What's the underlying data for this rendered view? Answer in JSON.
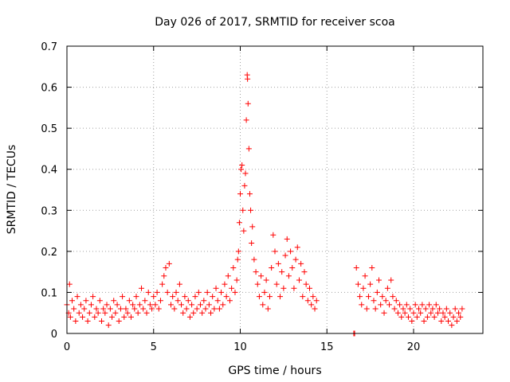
{
  "chart_data": {
    "type": "scatter",
    "title": "Day 026 of 2017, SRMTID for receiver scoa",
    "xlabel": "GPS time / hours",
    "ylabel": "SRMTID / TECUs",
    "xlim": [
      0,
      24
    ],
    "ylim": [
      0,
      0.7
    ],
    "xticks": [
      "0",
      "5",
      "10",
      "15",
      "20"
    ],
    "xtick_values": [
      0,
      5,
      10,
      15,
      20
    ],
    "yticks": [
      "0",
      "0.1",
      "0.2",
      "0.3",
      "0.4",
      "0.5",
      "0.6",
      "0.7"
    ],
    "ytick_values": [
      0,
      0.1,
      0.2,
      0.3,
      0.4,
      0.5,
      0.6,
      0.7
    ],
    "grid": true,
    "marker": "+",
    "color": "#ff0000",
    "series": [
      {
        "name": "SRMTID",
        "points": [
          [
            0.0,
            0.07
          ],
          [
            0.1,
            0.05
          ],
          [
            0.15,
            0.12
          ],
          [
            0.2,
            0.04
          ],
          [
            0.3,
            0.08
          ],
          [
            0.4,
            0.06
          ],
          [
            0.5,
            0.03
          ],
          [
            0.6,
            0.09
          ],
          [
            0.7,
            0.05
          ],
          [
            0.8,
            0.07
          ],
          [
            0.9,
            0.04
          ],
          [
            1.0,
            0.06
          ],
          [
            1.1,
            0.08
          ],
          [
            1.2,
            0.03
          ],
          [
            1.3,
            0.05
          ],
          [
            1.4,
            0.07
          ],
          [
            1.5,
            0.09
          ],
          [
            1.6,
            0.04
          ],
          [
            1.7,
            0.06
          ],
          [
            1.8,
            0.05
          ],
          [
            1.9,
            0.08
          ],
          [
            2.0,
            0.03
          ],
          [
            2.1,
            0.06
          ],
          [
            2.2,
            0.05
          ],
          [
            2.3,
            0.07
          ],
          [
            2.4,
            0.02
          ],
          [
            2.5,
            0.06
          ],
          [
            2.6,
            0.04
          ],
          [
            2.7,
            0.08
          ],
          [
            2.8,
            0.05
          ],
          [
            2.9,
            0.07
          ],
          [
            3.0,
            0.03
          ],
          [
            3.1,
            0.06
          ],
          [
            3.2,
            0.09
          ],
          [
            3.3,
            0.04
          ],
          [
            3.4,
            0.06
          ],
          [
            3.5,
            0.05
          ],
          [
            3.6,
            0.08
          ],
          [
            3.7,
            0.04
          ],
          [
            3.8,
            0.07
          ],
          [
            3.9,
            0.06
          ],
          [
            4.0,
            0.09
          ],
          [
            4.1,
            0.05
          ],
          [
            4.2,
            0.07
          ],
          [
            4.3,
            0.11
          ],
          [
            4.4,
            0.06
          ],
          [
            4.5,
            0.08
          ],
          [
            4.6,
            0.05
          ],
          [
            4.7,
            0.1
          ],
          [
            4.8,
            0.07
          ],
          [
            4.9,
            0.06
          ],
          [
            5.0,
            0.09
          ],
          [
            5.1,
            0.07
          ],
          [
            5.2,
            0.1
          ],
          [
            5.3,
            0.06
          ],
          [
            5.4,
            0.08
          ],
          [
            5.5,
            0.12
          ],
          [
            5.6,
            0.14
          ],
          [
            5.7,
            0.16
          ],
          [
            5.8,
            0.1
          ],
          [
            5.9,
            0.17
          ],
          [
            6.0,
            0.07
          ],
          [
            6.1,
            0.09
          ],
          [
            6.2,
            0.06
          ],
          [
            6.3,
            0.1
          ],
          [
            6.4,
            0.08
          ],
          [
            6.5,
            0.12
          ],
          [
            6.6,
            0.07
          ],
          [
            6.7,
            0.05
          ],
          [
            6.8,
            0.09
          ],
          [
            6.9,
            0.06
          ],
          [
            7.0,
            0.08
          ],
          [
            7.1,
            0.04
          ],
          [
            7.2,
            0.07
          ],
          [
            7.3,
            0.05
          ],
          [
            7.4,
            0.09
          ],
          [
            7.5,
            0.06
          ],
          [
            7.6,
            0.1
          ],
          [
            7.7,
            0.07
          ],
          [
            7.8,
            0.05
          ],
          [
            7.9,
            0.08
          ],
          [
            8.0,
            0.06
          ],
          [
            8.1,
            0.1
          ],
          [
            8.2,
            0.07
          ],
          [
            8.3,
            0.05
          ],
          [
            8.4,
            0.09
          ],
          [
            8.5,
            0.06
          ],
          [
            8.6,
            0.11
          ],
          [
            8.7,
            0.08
          ],
          [
            8.8,
            0.06
          ],
          [
            8.9,
            0.1
          ],
          [
            9.0,
            0.07
          ],
          [
            9.1,
            0.12
          ],
          [
            9.2,
            0.09
          ],
          [
            9.3,
            0.14
          ],
          [
            9.4,
            0.08
          ],
          [
            9.5,
            0.11
          ],
          [
            9.6,
            0.16
          ],
          [
            9.7,
            0.1
          ],
          [
            9.8,
            0.13
          ],
          [
            9.85,
            0.18
          ],
          [
            9.9,
            0.2
          ],
          [
            9.95,
            0.27
          ],
          [
            10.0,
            0.34
          ],
          [
            10.05,
            0.4
          ],
          [
            10.1,
            0.41
          ],
          [
            10.15,
            0.3
          ],
          [
            10.2,
            0.25
          ],
          [
            10.25,
            0.36
          ],
          [
            10.3,
            0.39
          ],
          [
            10.35,
            0.52
          ],
          [
            10.4,
            0.63
          ],
          [
            10.42,
            0.62
          ],
          [
            10.45,
            0.56
          ],
          [
            10.5,
            0.45
          ],
          [
            10.55,
            0.34
          ],
          [
            10.6,
            0.3
          ],
          [
            10.65,
            0.22
          ],
          [
            10.7,
            0.26
          ],
          [
            10.8,
            0.18
          ],
          [
            10.9,
            0.15
          ],
          [
            11.0,
            0.12
          ],
          [
            11.1,
            0.09
          ],
          [
            11.2,
            0.14
          ],
          [
            11.3,
            0.07
          ],
          [
            11.4,
            0.1
          ],
          [
            11.5,
            0.13
          ],
          [
            11.6,
            0.06
          ],
          [
            11.7,
            0.09
          ],
          [
            11.8,
            0.16
          ],
          [
            11.9,
            0.24
          ],
          [
            12.0,
            0.2
          ],
          [
            12.1,
            0.12
          ],
          [
            12.2,
            0.17
          ],
          [
            12.3,
            0.09
          ],
          [
            12.4,
            0.15
          ],
          [
            12.5,
            0.11
          ],
          [
            12.6,
            0.19
          ],
          [
            12.7,
            0.23
          ],
          [
            12.8,
            0.14
          ],
          [
            12.9,
            0.2
          ],
          [
            13.0,
            0.16
          ],
          [
            13.1,
            0.11
          ],
          [
            13.2,
            0.18
          ],
          [
            13.3,
            0.21
          ],
          [
            13.4,
            0.13
          ],
          [
            13.5,
            0.17
          ],
          [
            13.6,
            0.09
          ],
          [
            13.7,
            0.15
          ],
          [
            13.8,
            0.12
          ],
          [
            13.9,
            0.08
          ],
          [
            14.0,
            0.11
          ],
          [
            14.1,
            0.07
          ],
          [
            14.2,
            0.09
          ],
          [
            14.3,
            0.06
          ],
          [
            14.4,
            0.08
          ],
          [
            16.55,
            0.0
          ],
          [
            16.6,
            0.0
          ],
          [
            16.7,
            0.16
          ],
          [
            16.8,
            0.12
          ],
          [
            16.9,
            0.09
          ],
          [
            17.0,
            0.07
          ],
          [
            17.1,
            0.11
          ],
          [
            17.2,
            0.14
          ],
          [
            17.3,
            0.06
          ],
          [
            17.4,
            0.09
          ],
          [
            17.5,
            0.12
          ],
          [
            17.6,
            0.16
          ],
          [
            17.7,
            0.08
          ],
          [
            17.8,
            0.06
          ],
          [
            17.9,
            0.1
          ],
          [
            18.0,
            0.13
          ],
          [
            18.1,
            0.07
          ],
          [
            18.2,
            0.09
          ],
          [
            18.3,
            0.05
          ],
          [
            18.4,
            0.08
          ],
          [
            18.5,
            0.11
          ],
          [
            18.6,
            0.07
          ],
          [
            18.7,
            0.13
          ],
          [
            18.8,
            0.09
          ],
          [
            18.9,
            0.06
          ],
          [
            19.0,
            0.08
          ],
          [
            19.1,
            0.05
          ],
          [
            19.2,
            0.07
          ],
          [
            19.3,
            0.04
          ],
          [
            19.4,
            0.06
          ],
          [
            19.5,
            0.05
          ],
          [
            19.6,
            0.07
          ],
          [
            19.7,
            0.04
          ],
          [
            19.8,
            0.06
          ],
          [
            19.9,
            0.03
          ],
          [
            20.0,
            0.05
          ],
          [
            20.1,
            0.07
          ],
          [
            20.2,
            0.04
          ],
          [
            20.3,
            0.06
          ],
          [
            20.4,
            0.05
          ],
          [
            20.5,
            0.07
          ],
          [
            20.6,
            0.03
          ],
          [
            20.7,
            0.06
          ],
          [
            20.8,
            0.04
          ],
          [
            20.9,
            0.07
          ],
          [
            21.0,
            0.05
          ],
          [
            21.1,
            0.06
          ],
          [
            21.2,
            0.04
          ],
          [
            21.3,
            0.07
          ],
          [
            21.4,
            0.05
          ],
          [
            21.5,
            0.06
          ],
          [
            21.6,
            0.03
          ],
          [
            21.7,
            0.05
          ],
          [
            21.8,
            0.04
          ],
          [
            21.9,
            0.06
          ],
          [
            22.0,
            0.03
          ],
          [
            22.1,
            0.05
          ],
          [
            22.2,
            0.02
          ],
          [
            22.3,
            0.04
          ],
          [
            22.4,
            0.06
          ],
          [
            22.5,
            0.03
          ],
          [
            22.6,
            0.05
          ],
          [
            22.7,
            0.04
          ],
          [
            22.8,
            0.06
          ]
        ]
      }
    ]
  }
}
